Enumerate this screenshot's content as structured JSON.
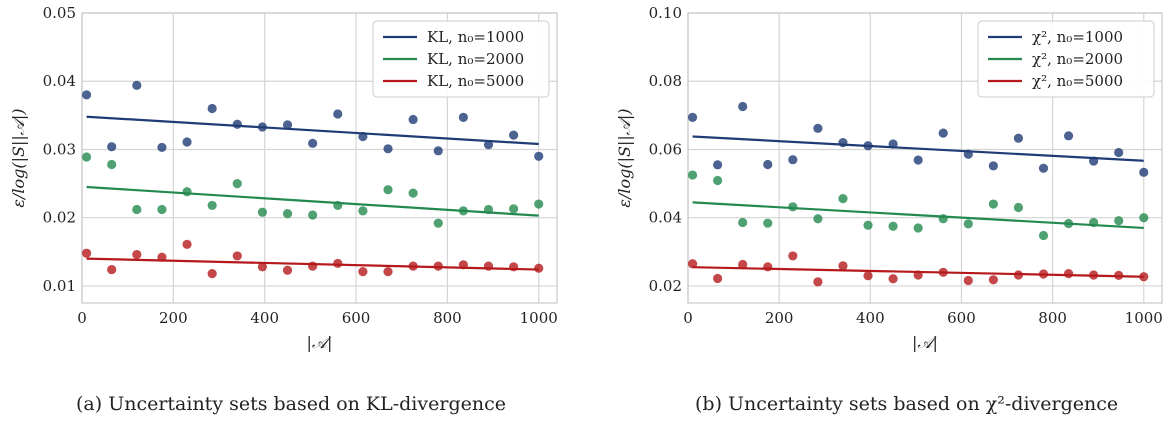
{
  "chart_data": [
    {
      "type": "scatter",
      "xlabel": "|𝒜|",
      "ylabel": "ε/log(|S||𝒜|)",
      "xlim": [
        0,
        1040
      ],
      "ylim": [
        0.0075,
        0.05
      ],
      "xticks": [
        0,
        200,
        400,
        600,
        800,
        1000
      ],
      "yticks": [
        0.01,
        0.02,
        0.03,
        0.04,
        0.05
      ],
      "ytick_labels": [
        "0.01",
        "0.02",
        "0.03",
        "0.04",
        "0.05"
      ],
      "grid": true,
      "legend_position": "top-right",
      "caption": "(a) Uncertainty sets based on KL-divergence",
      "x": [
        10,
        65,
        120,
        175,
        230,
        285,
        340,
        395,
        450,
        505,
        560,
        615,
        670,
        725,
        780,
        835,
        890,
        945,
        1000
      ],
      "series": [
        {
          "name": "KL, n₀=1000",
          "color": "#1f3c75",
          "fit": [
            0.0348,
            0.0308
          ],
          "values": [
            0.038,
            0.0304,
            0.0394,
            0.0303,
            0.0311,
            0.036,
            0.0337,
            0.0333,
            0.0336,
            0.0309,
            0.0352,
            0.0319,
            0.0301,
            0.0344,
            0.0298,
            0.0347,
            0.0307,
            0.0321,
            0.029
          ]
        },
        {
          "name": "KL, n₀=2000",
          "color": "#23894f",
          "fit": [
            0.0245,
            0.0203
          ],
          "values": [
            0.0289,
            0.0278,
            0.0212,
            0.0212,
            0.0238,
            0.0218,
            0.025,
            0.0208,
            0.0206,
            0.0204,
            0.0218,
            0.021,
            0.0241,
            0.0236,
            0.0192,
            0.021,
            0.0212,
            0.0213,
            0.022
          ]
        },
        {
          "name": "KL, n₀=5000",
          "color": "#b5191c",
          "fit": [
            0.014,
            0.0124
          ],
          "values": [
            0.0148,
            0.0124,
            0.0146,
            0.0142,
            0.0161,
            0.0118,
            0.0144,
            0.0128,
            0.0123,
            0.0129,
            0.0133,
            0.0121,
            0.0121,
            0.0129,
            0.0129,
            0.0131,
            0.0129,
            0.0128,
            0.0126
          ]
        }
      ]
    },
    {
      "type": "scatter",
      "xlabel": "|𝒜|",
      "ylabel": "ε/log(|S||𝒜|)",
      "xlim": [
        0,
        1040
      ],
      "ylim": [
        0.015,
        0.1
      ],
      "xticks": [
        0,
        200,
        400,
        600,
        800,
        1000
      ],
      "yticks": [
        0.02,
        0.04,
        0.06,
        0.08,
        0.1
      ],
      "ytick_labels": [
        "0.02",
        "0.04",
        "0.06",
        "0.08",
        "0.10"
      ],
      "grid": true,
      "legend_position": "top-right",
      "caption": "(b) Uncertainty sets based on χ²-divergence",
      "x": [
        10,
        65,
        120,
        175,
        230,
        285,
        340,
        395,
        450,
        505,
        560,
        615,
        670,
        725,
        780,
        835,
        890,
        945,
        1000
      ],
      "series": [
        {
          "name": "χ², n₀=1000",
          "color": "#1f3c75",
          "fit": [
            0.0638,
            0.0567
          ],
          "values": [
            0.0694,
            0.0555,
            0.0726,
            0.0556,
            0.057,
            0.0662,
            0.062,
            0.0611,
            0.0616,
            0.0569,
            0.0648,
            0.0586,
            0.0552,
            0.0633,
            0.0545,
            0.064,
            0.0566,
            0.0591,
            0.0533
          ]
        },
        {
          "name": "χ², n₀=2000",
          "color": "#23894f",
          "fit": [
            0.0445,
            0.037
          ],
          "values": [
            0.0525,
            0.0509,
            0.0386,
            0.0384,
            0.0432,
            0.0397,
            0.0456,
            0.0378,
            0.0375,
            0.037,
            0.0397,
            0.0382,
            0.044,
            0.043,
            0.0348,
            0.0383,
            0.0386,
            0.0391,
            0.04
          ]
        },
        {
          "name": "χ², n₀=5000",
          "color": "#b5191c",
          "fit": [
            0.0255,
            0.0227
          ],
          "values": [
            0.0265,
            0.0222,
            0.0263,
            0.0256,
            0.0288,
            0.0212,
            0.0259,
            0.023,
            0.0221,
            0.0232,
            0.024,
            0.0216,
            0.0218,
            0.0232,
            0.0235,
            0.0236,
            0.0232,
            0.0231,
            0.0227
          ]
        }
      ]
    }
  ]
}
